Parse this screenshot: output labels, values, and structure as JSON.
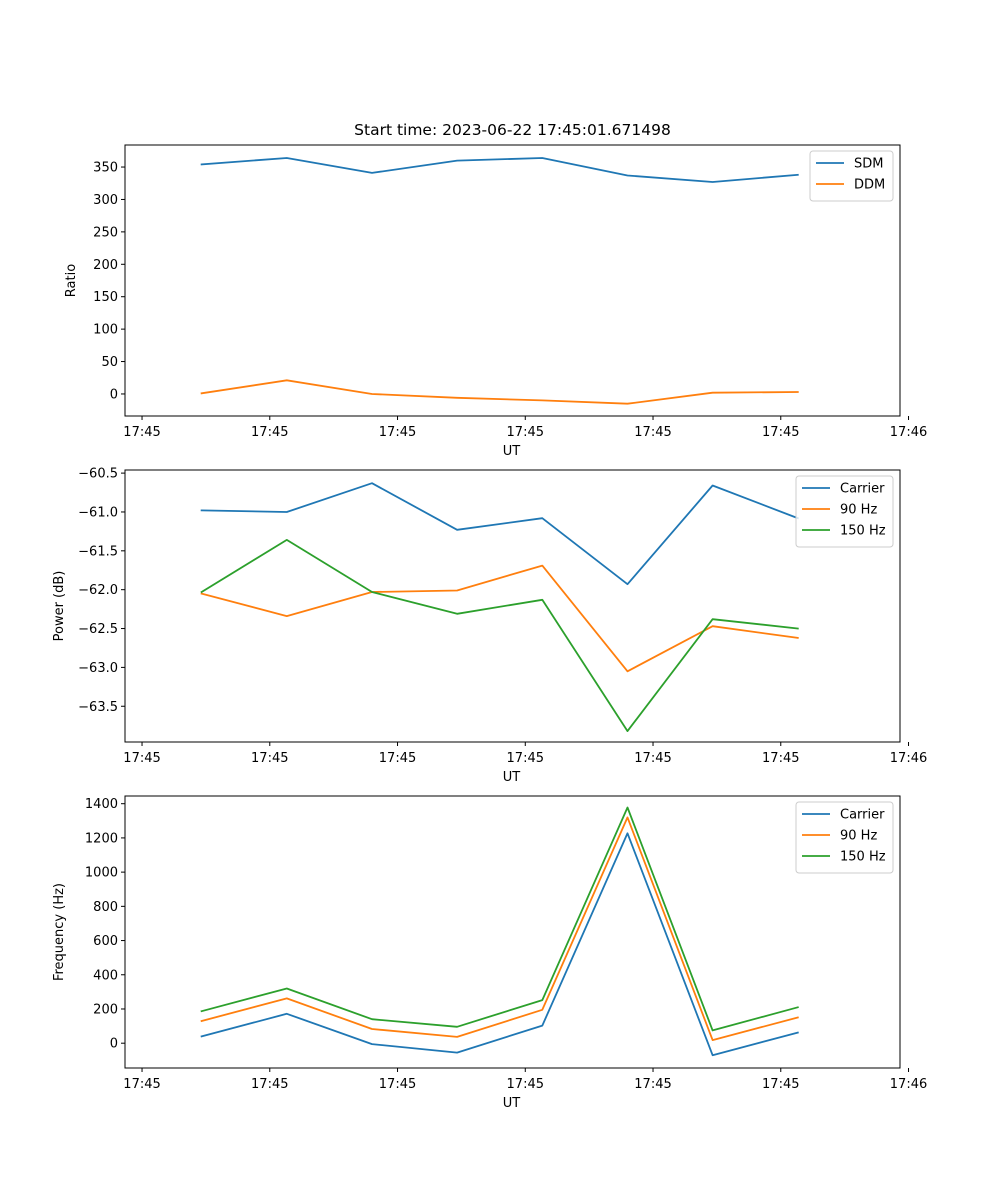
{
  "figure": {
    "title": "Start time: 2023-06-22 17:45:01.671498"
  },
  "chart_data": [
    {
      "type": "line",
      "title": "Start time: 2023-06-22 17:45:01.671498",
      "xlabel": "UT",
      "ylabel": "Ratio",
      "x": [
        1,
        2,
        3,
        4,
        5,
        6,
        7,
        8
      ],
      "x_tick_labels": [
        "17:45",
        "17:45",
        "17:45",
        "17:45",
        "17:45",
        "17:45",
        "17:46"
      ],
      "xlim": [
        0.1,
        9.2
      ],
      "ylim": [
        -34,
        384
      ],
      "y_ticks": [
        0,
        50,
        100,
        150,
        200,
        250,
        300,
        350
      ],
      "legend_position": "top-right",
      "series": [
        {
          "name": "SDM",
          "color": "#1f77b4",
          "values": [
            354,
            364,
            341,
            360,
            364,
            337,
            327,
            338
          ]
        },
        {
          "name": "DDM",
          "color": "#ff7f0e",
          "values": [
            1,
            21,
            0,
            -6,
            -10,
            -15,
            2,
            3
          ]
        }
      ]
    },
    {
      "type": "line",
      "xlabel": "UT",
      "ylabel": "Power (dB)",
      "x": [
        1,
        2,
        3,
        4,
        5,
        6,
        7,
        8
      ],
      "x_tick_labels": [
        "17:45",
        "17:45",
        "17:45",
        "17:45",
        "17:45",
        "17:45",
        "17:46"
      ],
      "xlim": [
        0.1,
        9.2
      ],
      "ylim": [
        -63.96,
        -60.46
      ],
      "y_ticks": [
        -63.5,
        -63.0,
        -62.5,
        -62.0,
        -61.5,
        -61.0,
        -60.5
      ],
      "y_tick_labels": [
        "−63.5",
        "−63.0",
        "−62.5",
        "−62.0",
        "−61.5",
        "−61.0",
        "−60.5"
      ],
      "legend_position": "top-right",
      "series": [
        {
          "name": "Carrier",
          "color": "#1f77b4",
          "values": [
            -60.98,
            -61.0,
            -60.63,
            -61.23,
            -61.08,
            -61.93,
            -60.66,
            -61.08
          ]
        },
        {
          "name": "90 Hz",
          "color": "#ff7f0e",
          "values": [
            -62.05,
            -62.34,
            -62.03,
            -62.01,
            -61.69,
            -63.05,
            -62.47,
            -62.62
          ]
        },
        {
          "name": "150 Hz",
          "color": "#2ca02c",
          "values": [
            -62.03,
            -61.36,
            -62.03,
            -62.31,
            -62.13,
            -63.82,
            -62.38,
            -62.5
          ]
        }
      ]
    },
    {
      "type": "line",
      "xlabel": "UT",
      "ylabel": "Frequency (Hz)",
      "x": [
        1,
        2,
        3,
        4,
        5,
        6,
        7,
        8
      ],
      "x_tick_labels": [
        "17:45",
        "17:45",
        "17:45",
        "17:45",
        "17:45",
        "17:45",
        "17:46"
      ],
      "xlim": [
        0.1,
        9.2
      ],
      "ylim": [
        -145,
        1445
      ],
      "y_ticks": [
        0,
        200,
        400,
        600,
        800,
        1000,
        1200,
        1400
      ],
      "legend_position": "top-right",
      "series": [
        {
          "name": "Carrier",
          "color": "#1f77b4",
          "values": [
            40,
            172,
            -5,
            -55,
            103,
            1227,
            -70,
            62
          ]
        },
        {
          "name": "90 Hz",
          "color": "#ff7f0e",
          "values": [
            130,
            262,
            83,
            37,
            195,
            1320,
            18,
            150
          ]
        },
        {
          "name": "150 Hz",
          "color": "#2ca02c",
          "values": [
            187,
            320,
            140,
            96,
            252,
            1378,
            75,
            210
          ]
        }
      ]
    }
  ]
}
